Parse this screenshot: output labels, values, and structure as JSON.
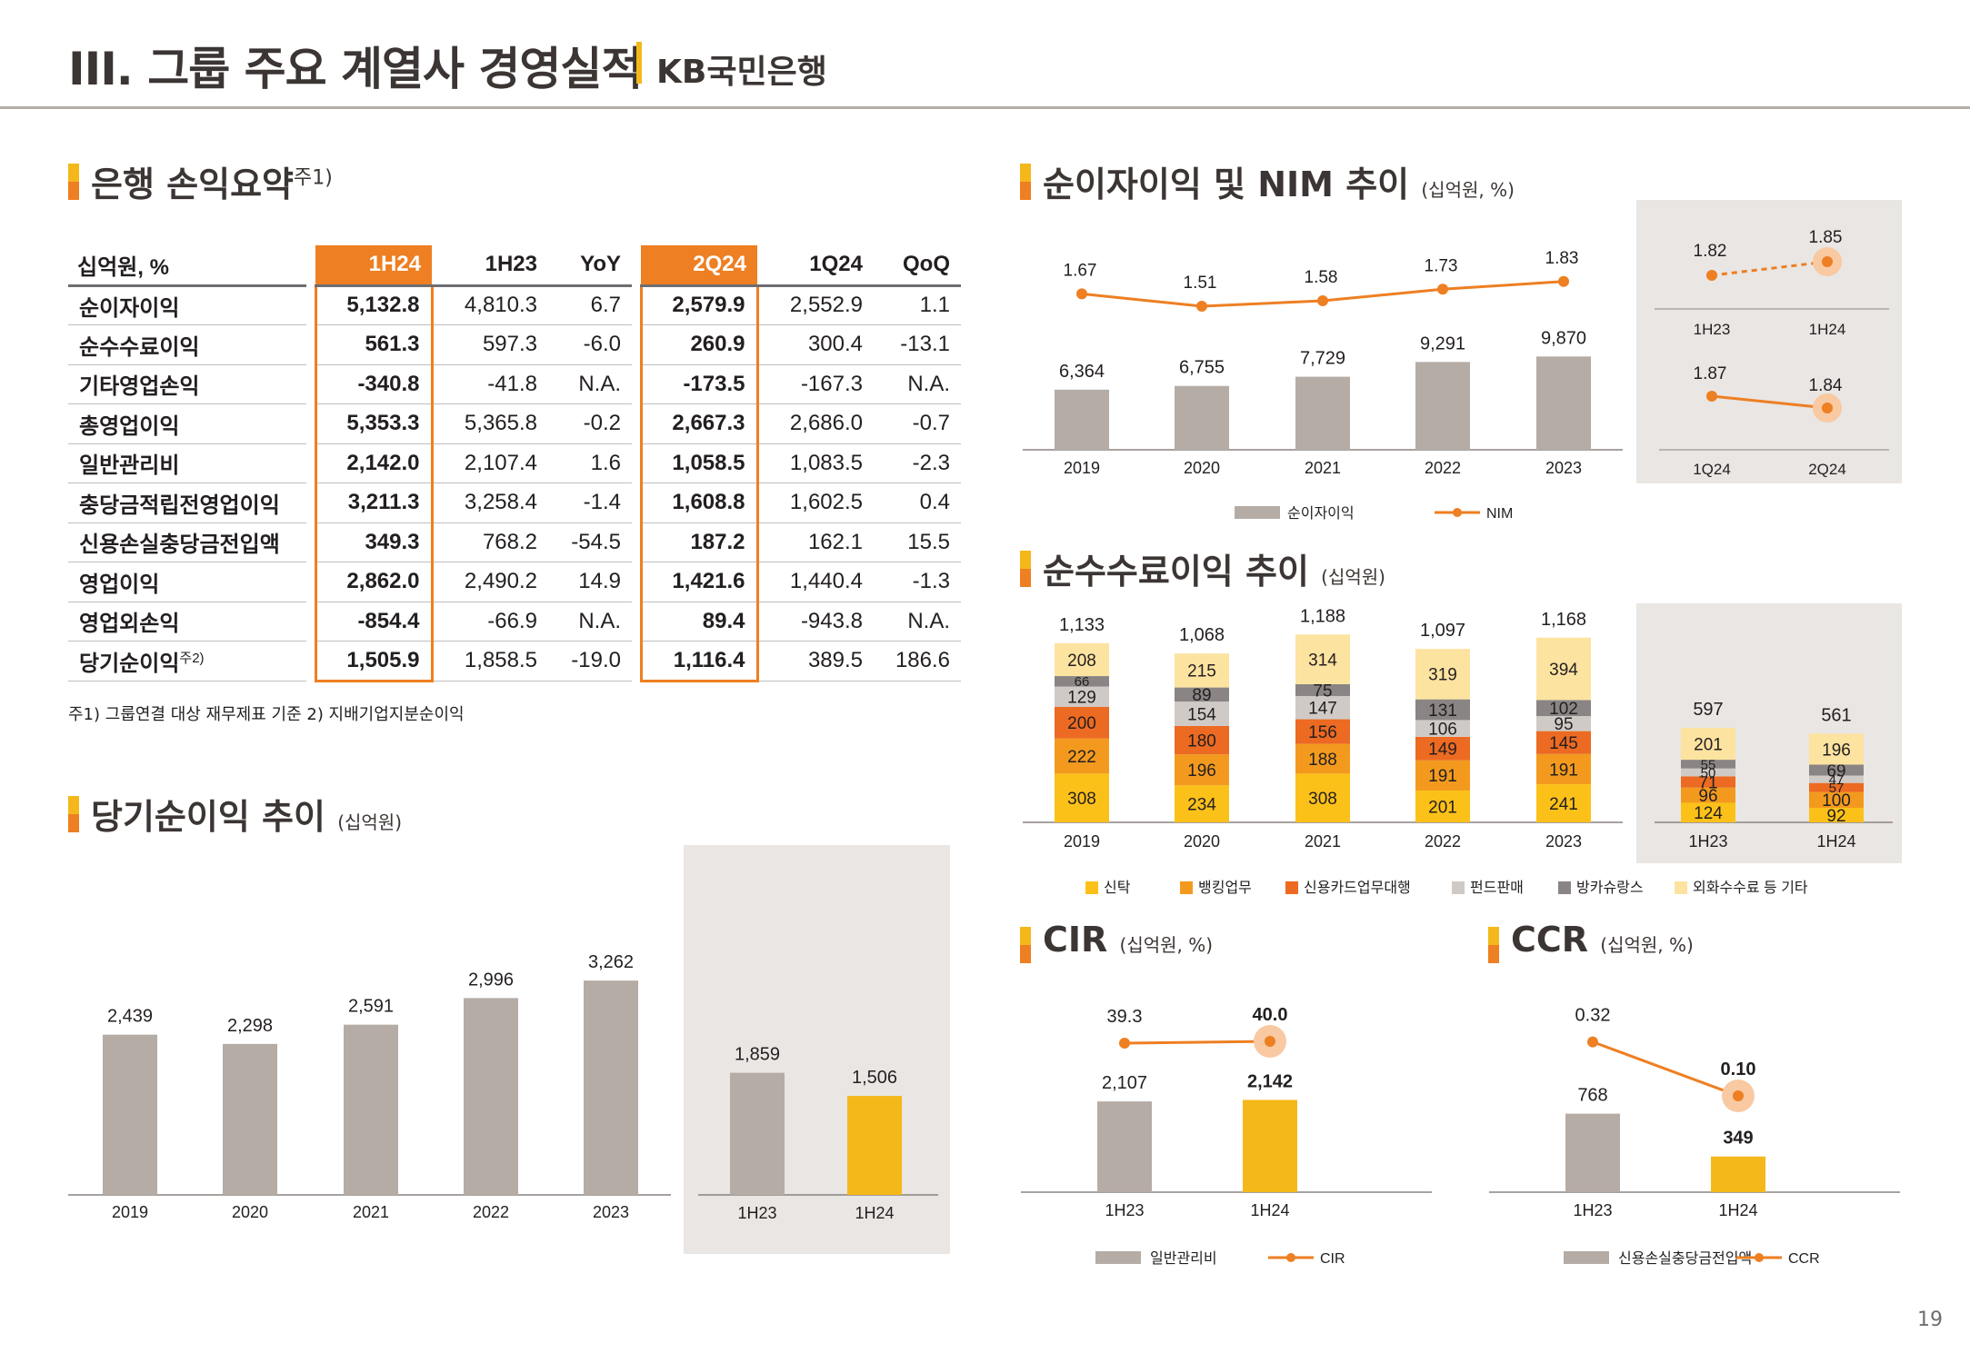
{
  "header": {
    "title": "III. 그룹 주요 계열사 경영실적",
    "subtitle": "KB국민은행"
  },
  "colors": {
    "orange": "#ee7f22",
    "yellow": "#f5b81a",
    "gray_bar": "#b5aca5",
    "panel_bg": "#e9e6e3"
  },
  "pnl": {
    "title": "은행 손익요약",
    "title_note": "주1)",
    "columns": [
      "십억원, %",
      "1H24",
      "1H23",
      "YoY",
      "2Q24",
      "1Q24",
      "QoQ"
    ],
    "rows": [
      {
        "label": "순이자이익",
        "note": "",
        "v": [
          "5,132.8",
          "4,810.3",
          "6.7",
          "2,579.9",
          "2,552.9",
          "1.1"
        ]
      },
      {
        "label": "순수수료이익",
        "note": "",
        "v": [
          "561.3",
          "597.3",
          "-6.0",
          "260.9",
          "300.4",
          "-13.1"
        ]
      },
      {
        "label": "기타영업손익",
        "note": "",
        "v": [
          "-340.8",
          "-41.8",
          "N.A.",
          "-173.5",
          "-167.3",
          "N.A."
        ]
      },
      {
        "label": "총영업이익",
        "note": "",
        "v": [
          "5,353.3",
          "5,365.8",
          "-0.2",
          "2,667.3",
          "2,686.0",
          "-0.7"
        ]
      },
      {
        "label": "일반관리비",
        "note": "",
        "v": [
          "2,142.0",
          "2,107.4",
          "1.6",
          "1,058.5",
          "1,083.5",
          "-2.3"
        ]
      },
      {
        "label": "충당금적립전영업이익",
        "note": "",
        "v": [
          "3,211.3",
          "3,258.4",
          "-1.4",
          "1,608.8",
          "1,602.5",
          "0.4"
        ]
      },
      {
        "label": "신용손실충당금전입액",
        "note": "",
        "v": [
          "349.3",
          "768.2",
          "-54.5",
          "187.2",
          "162.1",
          "15.5"
        ]
      },
      {
        "label": "영업이익",
        "note": "",
        "v": [
          "2,862.0",
          "2,490.2",
          "14.9",
          "1,421.6",
          "1,440.4",
          "-1.3"
        ]
      },
      {
        "label": "영업외손익",
        "note": "",
        "v": [
          "-854.4",
          "-66.9",
          "N.A.",
          "89.4",
          "-943.8",
          "N.A."
        ]
      },
      {
        "label": "당기순이익",
        "note": "주2)",
        "v": [
          "1,505.9",
          "1,858.5",
          "-19.0",
          "1,116.4",
          "389.5",
          "186.6"
        ]
      }
    ],
    "footnote": "주1) 그룹연결 대상 재무제표 기준   2) 지배기업지분순이익"
  },
  "chart_data": [
    {
      "id": "net_income",
      "type": "bar",
      "title": "당기순이익 추이",
      "unit": "(십억원)",
      "categories": [
        "2019",
        "2020",
        "2021",
        "2022",
        "2023"
      ],
      "values": [
        2439,
        2298,
        2591,
        2996,
        3262
      ],
      "labels": [
        "2,439",
        "2,298",
        "2,591",
        "2,996",
        "3,262"
      ],
      "half_categories": [
        "1H23",
        "1H24"
      ],
      "half_values": [
        1859,
        1506
      ],
      "half_labels": [
        "1,859",
        "1,506"
      ]
    },
    {
      "id": "nii_nim",
      "type": "bar",
      "title": "순이자이익 및 NIM 추이",
      "unit": "(십억원, %)",
      "categories": [
        "2019",
        "2020",
        "2021",
        "2022",
        "2023"
      ],
      "series": [
        {
          "name": "순이자이익",
          "values": [
            6364,
            6755,
            7729,
            9291,
            9870
          ],
          "labels": [
            "6,364",
            "6,755",
            "7,729",
            "9,291",
            "9,870"
          ]
        },
        {
          "name": "NIM",
          "values": [
            1.67,
            1.51,
            1.58,
            1.73,
            1.83
          ],
          "labels": [
            "1.67",
            "1.51",
            "1.58",
            "1.73",
            "1.83"
          ]
        }
      ],
      "side": {
        "top": {
          "categories": [
            "1H23",
            "1H24"
          ],
          "values": [
            1.82,
            1.85
          ],
          "labels": [
            "1.82",
            "1.85"
          ]
        },
        "bottom": {
          "categories": [
            "1Q24",
            "2Q24"
          ],
          "values": [
            1.87,
            1.84
          ],
          "labels": [
            "1.87",
            "1.84"
          ]
        }
      }
    },
    {
      "id": "fee_income",
      "type": "bar",
      "title": "순수수료이익 추이",
      "unit": "(십억원)",
      "categories": [
        "2019",
        "2020",
        "2021",
        "2022",
        "2023",
        "1H23",
        "1H24"
      ],
      "totals": [
        "1,133",
        "1,068",
        "1,188",
        "1,097",
        "1,168",
        "597",
        "561"
      ],
      "series": [
        {
          "name": "신탁",
          "values": [
            308,
            234,
            308,
            201,
            241,
            124,
            92
          ]
        },
        {
          "name": "뱅킹업무",
          "values": [
            222,
            196,
            188,
            191,
            191,
            96,
            100
          ]
        },
        {
          "name": "신용카드업무대행",
          "values": [
            200,
            180,
            156,
            149,
            145,
            71,
            57
          ]
        },
        {
          "name": "펀드판매",
          "values": [
            129,
            154,
            147,
            106,
            95,
            50,
            47
          ]
        },
        {
          "name": "방카슈랑스",
          "values": [
            66,
            89,
            75,
            131,
            102,
            55,
            69
          ]
        },
        {
          "name": "외화수수료 등 기타",
          "values": [
            208,
            215,
            314,
            319,
            394,
            201,
            196
          ]
        }
      ]
    },
    {
      "id": "cir",
      "type": "bar",
      "title": "CIR",
      "unit": "(십억원, %)",
      "categories": [
        "1H23",
        "1H24"
      ],
      "series": [
        {
          "name": "일반관리비",
          "values": [
            2107,
            2142
          ],
          "labels": [
            "2,107",
            "2,142"
          ]
        },
        {
          "name": "CIR",
          "values": [
            39.3,
            40.0
          ],
          "labels": [
            "39.3",
            "40.0"
          ]
        }
      ]
    },
    {
      "id": "ccr",
      "type": "bar",
      "title": "CCR",
      "unit": "(십억원, %)",
      "categories": [
        "1H23",
        "1H24"
      ],
      "series": [
        {
          "name": "신용손실충당금전입액",
          "values": [
            768,
            349
          ],
          "labels": [
            "768",
            "349"
          ]
        },
        {
          "name": "CCR",
          "values": [
            0.32,
            0.1
          ],
          "labels": [
            "0.32",
            "0.10"
          ]
        }
      ]
    }
  ],
  "page_number": "19"
}
